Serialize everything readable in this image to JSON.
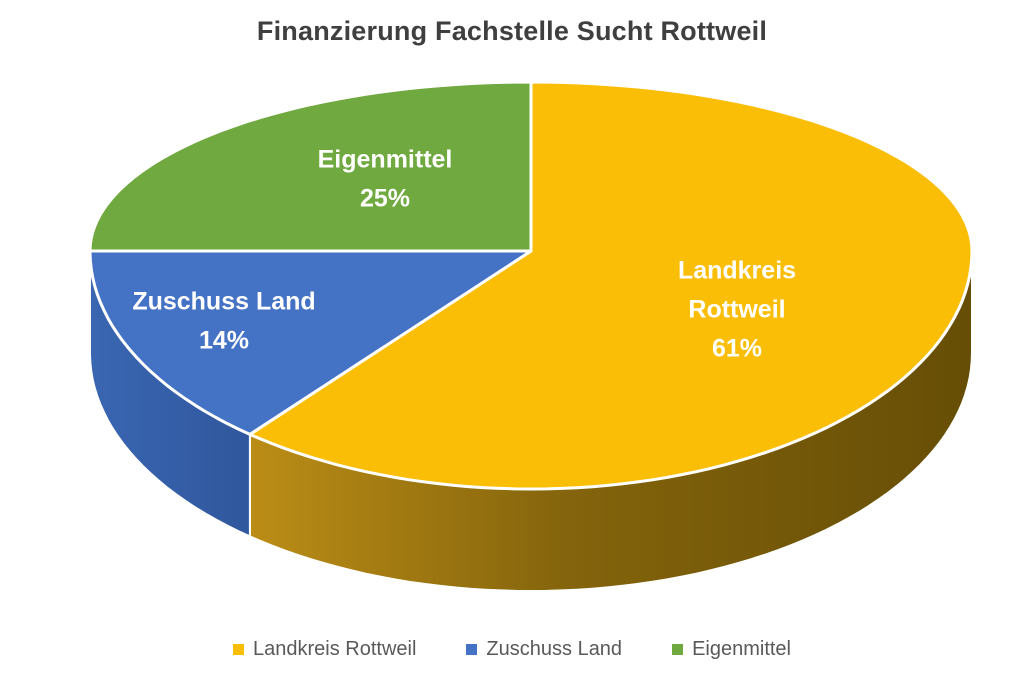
{
  "chart_data": {
    "type": "pie",
    "style": "3d",
    "title": "Finanzierung Fachstelle Sucht Rottweil",
    "direction": "clockwise",
    "start_angle_deg": 0,
    "legend_position": "bottom",
    "background_color": "#FFFFFF",
    "title_color": "#3F3F3F",
    "legend_text_color": "#595959",
    "slice_label_color": "#FFFFFF",
    "slices": [
      {
        "label": "Landkreis Rottweil",
        "value": 61,
        "pct_label": "61%",
        "color": "#FBBE07",
        "label_lines": [
          "Landkreis",
          "Rottweil"
        ]
      },
      {
        "label": "Zuschuss Land",
        "value": 14,
        "pct_label": "14%",
        "color": "#4472C4",
        "label_lines": [
          "Zuschuss Land"
        ]
      },
      {
        "label": "Eigenmittel",
        "value": 25,
        "pct_label": "25%",
        "color": "#6FA93F",
        "label_lines": [
          "Eigenmittel"
        ]
      }
    ],
    "legend": [
      "Landkreis Rottweil",
      "Zuschuss Land",
      "Eigenmittel"
    ]
  }
}
